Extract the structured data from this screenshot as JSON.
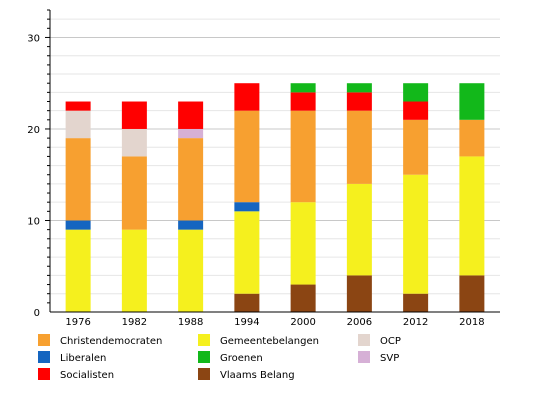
{
  "chart_data": {
    "type": "bar",
    "stacked": true,
    "categories": [
      "1976",
      "1982",
      "1988",
      "1994",
      "2000",
      "2006",
      "2012",
      "2018"
    ],
    "ylim": [
      0,
      33
    ],
    "yticks": [
      0,
      10,
      20,
      30
    ],
    "ytick_labels": [
      "0",
      "10",
      "20",
      "30"
    ],
    "grid": true,
    "legend_placement": "bottom",
    "series": [
      {
        "name": "Vlaams Belang",
        "color": "#8B4513",
        "values": [
          0,
          0,
          0,
          2,
          3,
          4,
          2,
          4
        ]
      },
      {
        "name": "Gemeentebelangen",
        "color": "#F5F01E",
        "values": [
          9,
          9,
          9,
          9,
          9,
          10,
          13,
          13
        ]
      },
      {
        "name": "Liberalen",
        "color": "#1565C0",
        "values": [
          1,
          0,
          1,
          1,
          0,
          0,
          0,
          0
        ]
      },
      {
        "name": "Christendemocraten",
        "color": "#F7A030",
        "values": [
          9,
          8,
          9,
          10,
          10,
          8,
          6,
          4
        ]
      },
      {
        "name": "SVP",
        "color": "#D6B0D6",
        "values": [
          0,
          0,
          1,
          0,
          0,
          0,
          0,
          0
        ]
      },
      {
        "name": "OCP",
        "color": "#E3D5CE",
        "values": [
          3,
          3,
          0,
          0,
          0,
          0,
          0,
          0
        ]
      },
      {
        "name": "Socialisten",
        "color": "#FF0000",
        "values": [
          1,
          3,
          3,
          3,
          2,
          2,
          2,
          0
        ]
      },
      {
        "name": "Groenen",
        "color": "#12B81A",
        "values": [
          0,
          0,
          0,
          0,
          1,
          1,
          2,
          4
        ]
      }
    ],
    "legend_order": [
      "Christendemocraten",
      "Gemeentebelangen",
      "OCP",
      "Liberalen",
      "Groenen",
      "SVP",
      "Socialisten",
      "Vlaams Belang"
    ]
  }
}
